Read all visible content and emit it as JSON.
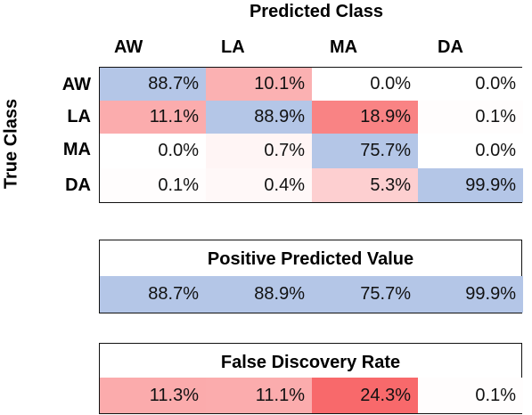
{
  "chart_data": {
    "type": "heatmap",
    "title": "Predicted Class",
    "ylabel": "True Class",
    "columns": [
      "AW",
      "LA",
      "MA",
      "DA"
    ],
    "rows": [
      "AW",
      "LA",
      "MA",
      "DA"
    ],
    "matrix": [
      [
        "88.7%",
        "10.1%",
        "0.0%",
        "0.0%"
      ],
      [
        "11.1%",
        "88.9%",
        "18.9%",
        "0.1%"
      ],
      [
        "0.0%",
        "0.7%",
        "75.7%",
        "0.0%"
      ],
      [
        "0.1%",
        "0.4%",
        "5.3%",
        "99.9%"
      ]
    ],
    "matrix_values": [
      [
        88.7,
        10.1,
        0.0,
        0.0
      ],
      [
        11.1,
        88.9,
        18.9,
        0.1
      ],
      [
        0.0,
        0.7,
        75.7,
        0.0
      ],
      [
        0.1,
        0.4,
        5.3,
        99.9
      ]
    ],
    "ppv": {
      "label": "Positive Predicted Value",
      "values": [
        "88.7%",
        "88.9%",
        "75.7%",
        "99.9%"
      ],
      "numbers": [
        88.7,
        88.9,
        75.7,
        99.9
      ]
    },
    "fdr": {
      "label": "False Discovery Rate",
      "values": [
        "11.3%",
        "11.1%",
        "24.3%",
        "0.1%"
      ],
      "numbers": [
        11.3,
        11.1,
        24.3,
        0.1
      ]
    },
    "colors": {
      "correct": "#b4c6e7",
      "error": "#f8696b",
      "neutral": "#ffffff"
    }
  }
}
